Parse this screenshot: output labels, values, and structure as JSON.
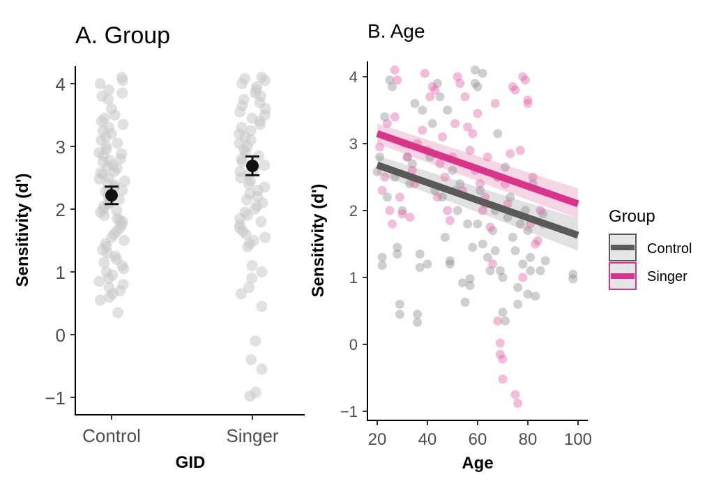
{
  "colors": {
    "control": "#595959",
    "singer": "#d9338a",
    "jitter": "#c8c8c8",
    "mean": "#111111"
  },
  "chart_data": [
    {
      "type": "scatter",
      "title": "A. Group",
      "xlabel": "GID",
      "ylabel": "Sensitivity (d')",
      "categories": [
        "Control",
        "Singer"
      ],
      "ylim": [
        -1.2,
        4.35
      ],
      "yticks": [
        "−1",
        "0",
        "1",
        "2",
        "3",
        "4"
      ],
      "grid": false,
      "means": [
        {
          "group": "Control",
          "mean": 2.22,
          "se_low": 2.08,
          "se_high": 2.36
        },
        {
          "group": "Singer",
          "mean": 2.69,
          "se_low": 2.54,
          "se_high": 2.84
        }
      ],
      "points": {
        "Control": [
          4.1,
          4.05,
          4.0,
          3.9,
          3.85,
          3.8,
          3.75,
          3.6,
          3.5,
          3.45,
          3.4,
          3.35,
          3.3,
          3.25,
          3.2,
          3.15,
          3.1,
          3.05,
          3.0,
          2.95,
          2.9,
          2.88,
          2.85,
          2.8,
          2.78,
          2.75,
          2.7,
          2.68,
          2.65,
          2.6,
          2.58,
          2.55,
          2.5,
          2.48,
          2.45,
          2.4,
          2.38,
          2.35,
          2.3,
          2.28,
          2.25,
          2.2,
          2.18,
          2.15,
          2.1,
          2.08,
          2.05,
          2.0,
          1.98,
          1.95,
          1.9,
          1.85,
          1.82,
          1.8,
          1.75,
          1.7,
          1.65,
          1.6,
          1.55,
          1.5,
          1.45,
          1.4,
          1.35,
          1.3,
          1.25,
          1.2,
          1.15,
          1.1,
          1.05,
          1.0,
          0.95,
          0.9,
          0.85,
          0.8,
          0.75,
          0.7,
          0.65,
          0.6,
          0.55,
          0.35
        ],
        "Singer": [
          4.1,
          4.08,
          4.05,
          4.0,
          3.95,
          3.9,
          3.85,
          3.8,
          3.75,
          3.7,
          3.65,
          3.6,
          3.55,
          3.5,
          3.45,
          3.4,
          3.35,
          3.3,
          3.25,
          3.2,
          3.15,
          3.1,
          3.05,
          3.0,
          2.95,
          2.9,
          2.85,
          2.8,
          2.75,
          2.7,
          2.65,
          2.6,
          2.55,
          2.5,
          2.45,
          2.4,
          2.35,
          2.3,
          2.25,
          2.2,
          2.15,
          2.1,
          2.05,
          2.0,
          1.95,
          1.9,
          1.85,
          1.8,
          1.75,
          1.7,
          1.65,
          1.6,
          1.55,
          1.5,
          1.45,
          1.4,
          1.1,
          1.0,
          0.9,
          0.75,
          0.65,
          0.45,
          -0.1,
          -0.4,
          -0.55,
          -0.92,
          -0.98
        ]
      }
    },
    {
      "type": "scatter",
      "title": "B. Age",
      "xlabel": "Age",
      "ylabel": "Sensitivity (d')",
      "xlim": [
        17,
        102
      ],
      "ylim": [
        -1.2,
        4.35
      ],
      "xticks": [
        "20",
        "40",
        "60",
        "80",
        "100"
      ],
      "yticks": [
        "−1",
        "0",
        "1",
        "2",
        "3",
        "4"
      ],
      "grid": false,
      "legend": {
        "title": "Group",
        "placement": "right",
        "entries": [
          "Control",
          "Singer"
        ]
      },
      "series": [
        {
          "name": "Control",
          "fit": {
            "x": [
              20,
              100
            ],
            "y": [
              2.68,
              1.63
            ]
          },
          "band": {
            "lower": [
              2.55,
              1.4
            ],
            "upper": [
              2.82,
              1.88
            ]
          },
          "points": [
            [
              20,
              2.58
            ],
            [
              21,
              2.8
            ],
            [
              22,
              1.3
            ],
            [
              22,
              1.18
            ],
            [
              23,
              3.4
            ],
            [
              24,
              2.2
            ],
            [
              25,
              3.95
            ],
            [
              26,
              3.85
            ],
            [
              27,
              2.5
            ],
            [
              28,
              1.45
            ],
            [
              28,
              1.35
            ],
            [
              29,
              0.6
            ],
            [
              29,
              0.45
            ],
            [
              30,
              2.0
            ],
            [
              32,
              2.8
            ],
            [
              33,
              2.4
            ],
            [
              34,
              2.7
            ],
            [
              35,
              3.6
            ],
            [
              36,
              0.45
            ],
            [
              36,
              0.33
            ],
            [
              37,
              1.35
            ],
            [
              37,
              1.15
            ],
            [
              38,
              3.5
            ],
            [
              40,
              1.2
            ],
            [
              41,
              2.8
            ],
            [
              42,
              3.3
            ],
            [
              43,
              2.3
            ],
            [
              44,
              3.9
            ],
            [
              45,
              3.7
            ],
            [
              46,
              2.2
            ],
            [
              47,
              1.6
            ],
            [
              48,
              3.5
            ],
            [
              49,
              1.25
            ],
            [
              49,
              1.2
            ],
            [
              50,
              2.6
            ],
            [
              51,
              2.3
            ],
            [
              52,
              2.0
            ],
            [
              53,
              2.4
            ],
            [
              54,
              0.92
            ],
            [
              55,
              0.63
            ],
            [
              56,
              1.8
            ],
            [
              57,
              0.98
            ],
            [
              57,
              0.88
            ],
            [
              58,
              1.45
            ],
            [
              59,
              4.1
            ],
            [
              59,
              3.9
            ],
            [
              60,
              3.85
            ],
            [
              60,
              1.8
            ],
            [
              61,
              2.3
            ],
            [
              62,
              4.05
            ],
            [
              62,
              1.5
            ],
            [
              63,
              2.1
            ],
            [
              64,
              1.3
            ],
            [
              65,
              1.1
            ],
            [
              66,
              1.7
            ],
            [
              67,
              2.0
            ],
            [
              67,
              1.4
            ],
            [
              68,
              3.15
            ],
            [
              68,
              2.5
            ],
            [
              69,
              1.1
            ],
            [
              70,
              1.0
            ],
            [
              70,
              0.48
            ],
            [
              71,
              0.35
            ],
            [
              71,
              2.65
            ],
            [
              72,
              1.9
            ],
            [
              73,
              2.2
            ],
            [
              74,
              1.6
            ],
            [
              75,
              1.4
            ],
            [
              76,
              0.6
            ],
            [
              76,
              0.85
            ],
            [
              77,
              1.8
            ],
            [
              78,
              1.2
            ],
            [
              79,
              2.0
            ],
            [
              80,
              1.7
            ],
            [
              80,
              0.75
            ],
            [
              81,
              1.3
            ],
            [
              81,
              1.1
            ],
            [
              82,
              2.4
            ],
            [
              83,
              0.72
            ],
            [
              85,
              1.1
            ],
            [
              86,
              1.95
            ],
            [
              87,
              1.25
            ],
            [
              98,
              1.05
            ],
            [
              98,
              0.98
            ]
          ]
        },
        {
          "name": "Singer",
          "fit": {
            "x": [
              20,
              100
            ],
            "y": [
              3.15,
              2.1
            ]
          },
          "band": {
            "lower": [
              3.0,
              1.88
            ],
            "upper": [
              3.3,
              2.33
            ]
          },
          "points": [
            [
              21,
              2.95
            ],
            [
              22,
              2.3
            ],
            [
              23,
              2.5
            ],
            [
              24,
              3.3
            ],
            [
              25,
              2.0
            ],
            [
              26,
              1.8
            ],
            [
              27,
              3.4
            ],
            [
              27,
              4.1
            ],
            [
              28,
              3.95
            ],
            [
              29,
              2.2
            ],
            [
              30,
              1.95
            ],
            [
              31,
              3.0
            ],
            [
              32,
              2.8
            ],
            [
              33,
              1.9
            ],
            [
              34,
              2.6
            ],
            [
              35,
              2.4
            ],
            [
              36,
              3.0
            ],
            [
              38,
              3.2
            ],
            [
              39,
              4.05
            ],
            [
              40,
              2.9
            ],
            [
              41,
              3.7
            ],
            [
              42,
              3.85
            ],
            [
              43,
              3.8
            ],
            [
              44,
              2.2
            ],
            [
              45,
              2.7
            ],
            [
              46,
              3.1
            ],
            [
              47,
              2.5
            ],
            [
              48,
              2.0
            ],
            [
              49,
              1.85
            ],
            [
              50,
              2.8
            ],
            [
              51,
              3.3
            ],
            [
              52,
              4.0
            ],
            [
              53,
              3.9
            ],
            [
              54,
              2.3
            ],
            [
              55,
              3.7
            ],
            [
              56,
              3.25
            ],
            [
              57,
              2.9
            ],
            [
              58,
              3.15
            ],
            [
              59,
              2.6
            ],
            [
              60,
              3.45
            ],
            [
              61,
              2.4
            ],
            [
              62,
              2.0
            ],
            [
              63,
              2.2
            ],
            [
              64,
              2.8
            ],
            [
              65,
              1.75
            ],
            [
              66,
              1.2
            ],
            [
              67,
              3.6
            ],
            [
              68,
              2.5
            ],
            [
              68,
              0.35
            ],
            [
              69,
              0.02
            ],
            [
              69,
              -0.15
            ],
            [
              70,
              -0.22
            ],
            [
              70,
              -0.52
            ],
            [
              71,
              2.4
            ],
            [
              72,
              2.1
            ],
            [
              73,
              2.85
            ],
            [
              74,
              3.85
            ],
            [
              75,
              3.8
            ],
            [
              75,
              -0.75
            ],
            [
              76,
              -0.88
            ],
            [
              77,
              2.9
            ],
            [
              78,
              4.0
            ],
            [
              79,
              3.95
            ],
            [
              80,
              3.6
            ],
            [
              80,
              3.65
            ],
            [
              81,
              1.8
            ],
            [
              82,
              2.5
            ],
            [
              83,
              1.5
            ],
            [
              84,
              1.55
            ],
            [
              85,
              2.0
            ],
            [
              86,
              1.8
            ],
            [
              78,
              1.0
            ]
          ]
        }
      ]
    }
  ]
}
